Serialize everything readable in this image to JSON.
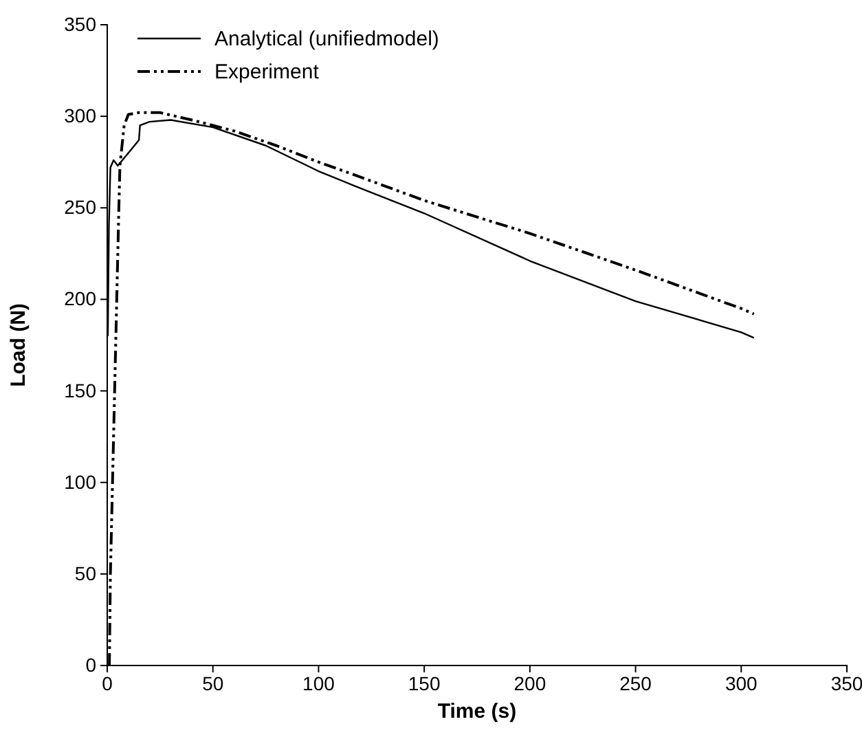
{
  "chart_data": {
    "type": "line",
    "xlabel": "Time (s)",
    "ylabel": "Load (N)",
    "xlim": [
      0,
      350
    ],
    "ylim": [
      0,
      350
    ],
    "xticks": [
      0,
      50,
      100,
      150,
      200,
      250,
      300,
      350
    ],
    "yticks": [
      0,
      50,
      100,
      150,
      200,
      250,
      300,
      350
    ],
    "grid": false,
    "legend": "top left",
    "marker": "none",
    "series": [
      {
        "name": "Analytical (unifiedmodel)",
        "color": "#000000",
        "line_style": "solid",
        "x": [
          0.3,
          0.8,
          1.5,
          3,
          5,
          10,
          15,
          15.5,
          20,
          30,
          50,
          75,
          100,
          117,
          150,
          200,
          250,
          300,
          306
        ],
        "values": [
          180,
          240,
          272,
          276,
          273,
          280,
          287,
          295,
          297,
          298,
          294,
          284,
          270,
          262,
          247,
          221,
          199,
          182,
          179
        ]
      },
      {
        "name": "Experiment",
        "color": "#000000",
        "line_style": "dashed",
        "x": [
          1,
          1.5,
          2.5,
          3.5,
          4.5,
          5.5,
          6,
          8,
          10,
          15,
          25,
          40,
          60,
          80,
          100,
          117,
          150,
          200,
          250,
          300,
          306
        ],
        "values": [
          0,
          50,
          100,
          150,
          200,
          250,
          273,
          295,
          301,
          302,
          302,
          298,
          292,
          284,
          275,
          268,
          254,
          236,
          216,
          195,
          192
        ]
      }
    ]
  }
}
